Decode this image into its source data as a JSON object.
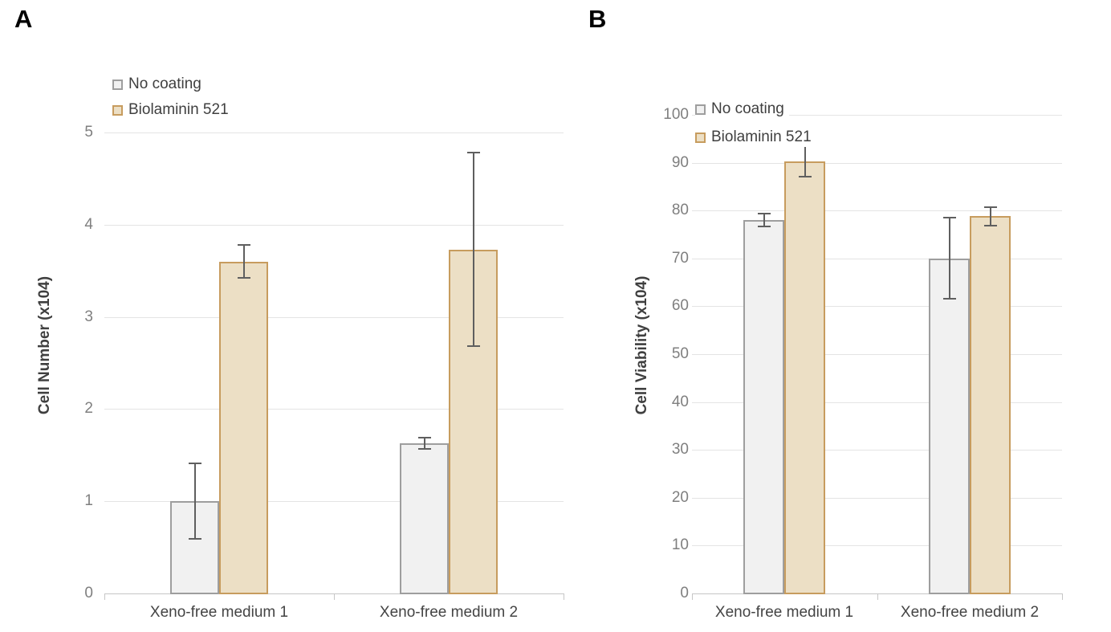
{
  "figure_type": "two-panel grouped bar chart with error bars",
  "error_bar_color": "#5f5f5f",
  "grid_color": "#e4e4e4",
  "axis_color": "#c6c6c6",
  "chart_data": [
    {
      "panel_label": "A",
      "type": "bar",
      "title": "",
      "xlabel": "",
      "ylabel": "Cell Number (x104)",
      "ylim": [
        0,
        5
      ],
      "yticks": [
        0,
        1,
        2,
        3,
        4,
        5
      ],
      "grid": true,
      "legend_position": "top-left",
      "legend": [
        "No coating",
        "Biolaminin 521"
      ],
      "categories": [
        "Xeno-free medium 1",
        "Xeno-free medium 2"
      ],
      "series": [
        {
          "name": "No coating",
          "values": [
            1.0,
            1.63
          ],
          "errors": [
            0.41,
            0.06
          ],
          "fill": "#f1f1f1",
          "stroke": "#9e9e9e"
        },
        {
          "name": "Biolaminin 521",
          "values": [
            3.6,
            3.73
          ],
          "errors": [
            0.18,
            1.05
          ],
          "fill": "#ecdfc5",
          "stroke": "#c79c5e"
        }
      ]
    },
    {
      "panel_label": "B",
      "type": "bar",
      "title": "",
      "xlabel": "",
      "ylabel": "Cell Viability (x104)",
      "ylim": [
        0,
        100
      ],
      "yticks": [
        0,
        10,
        20,
        30,
        40,
        50,
        60,
        70,
        80,
        90,
        100
      ],
      "grid": true,
      "legend_position": "top-left",
      "legend": [
        "No coating",
        "Biolaminin 521"
      ],
      "categories": [
        "Xeno-free medium 1",
        "Xeno-free medium 2"
      ],
      "series": [
        {
          "name": "No coating",
          "values": [
            78,
            70
          ],
          "errors": [
            1.4,
            8.5
          ],
          "fill": "#f1f1f1",
          "stroke": "#9e9e9e"
        },
        {
          "name": "Biolaminin 521",
          "values": [
            90.3,
            78.8
          ],
          "errors": [
            3.3,
            1.9
          ],
          "fill": "#ecdfc5",
          "stroke": "#c79c5e"
        }
      ]
    }
  ]
}
